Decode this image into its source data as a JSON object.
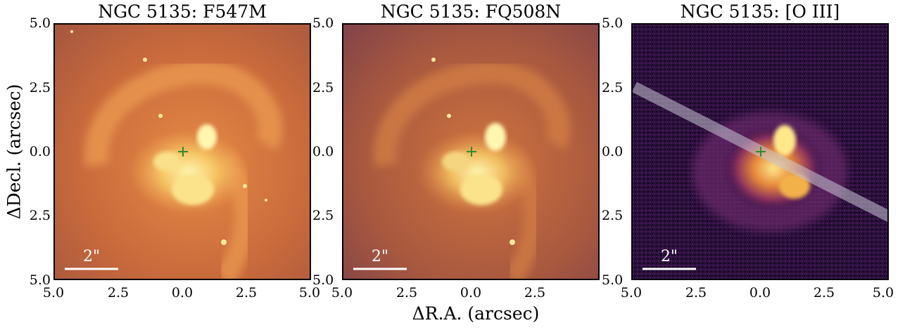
{
  "panels": [
    {
      "title": "NGC 5135: F547M",
      "style": "f547m",
      "scalebar": "2\""
    },
    {
      "title": "NGC 5135: FQ508N",
      "style": "fq508n",
      "scalebar": "2\""
    },
    {
      "title": "NGC 5135: [O III]",
      "style": "oiii",
      "scalebar": "2\""
    }
  ],
  "axes": {
    "xlabel": "ΔR.A. (arcsec)",
    "ylabel": "ΔDecl. (arcsec)",
    "xticks": [
      "5.0",
      "2.5",
      "0.0",
      "2.5",
      "5.0"
    ],
    "yticks": [
      "5.0",
      "2.5",
      "0.0",
      "2.5",
      "5.0"
    ]
  },
  "colors": {
    "f547m_bg": "#c96a3c",
    "fq508n_bg": "#a8583f",
    "oiii_bg": "#2a0f3c",
    "core": "#fff2a6",
    "marker": "#2e8b2e",
    "slit": "#c9c7d6"
  }
}
